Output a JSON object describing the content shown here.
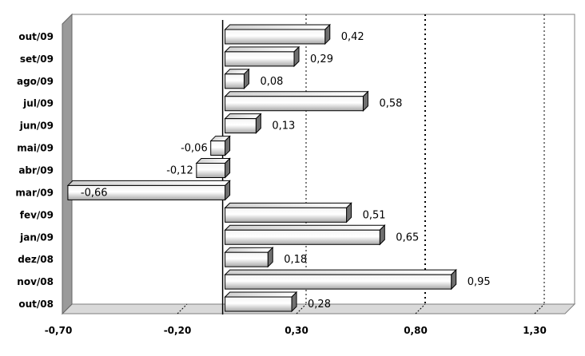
{
  "chart_data": {
    "type": "bar",
    "orientation": "horizontal",
    "categories": [
      "out/09",
      "set/09",
      "ago/09",
      "jul/09",
      "jun/09",
      "mai/09",
      "abr/09",
      "mar/09",
      "fev/09",
      "jan/09",
      "dez/08",
      "nov/08",
      "out/08"
    ],
    "values": [
      0.42,
      0.29,
      0.08,
      0.58,
      0.13,
      -0.06,
      -0.12,
      -0.66,
      0.51,
      0.65,
      0.18,
      0.95,
      0.28
    ],
    "value_labels": [
      "0,42",
      "0,29",
      "0,08",
      "0,58",
      "0,13",
      "-0,06",
      "-0,12",
      "-0,66",
      "0,51",
      "0,65",
      "0,18",
      "0,95",
      "0,28"
    ],
    "xlim": [
      -0.7,
      1.3
    ],
    "x_ticks": [
      -0.7,
      -0.2,
      0.3,
      0.8,
      1.3
    ],
    "x_tick_labels": [
      "-0,70",
      "-0,20",
      "0,30",
      "0,80",
      "1,30"
    ],
    "reference_lines": [
      0.3,
      0.8,
      1.3
    ],
    "title": "",
    "xlabel": "",
    "ylabel": "",
    "grid": false,
    "legend": "none",
    "colors": {
      "bar_light": "#ffffff",
      "bar_dark": "#a8a8a8",
      "bar_edge": "#000000",
      "wall": "#9a9a9a",
      "floor": "#d9d9d9"
    }
  }
}
